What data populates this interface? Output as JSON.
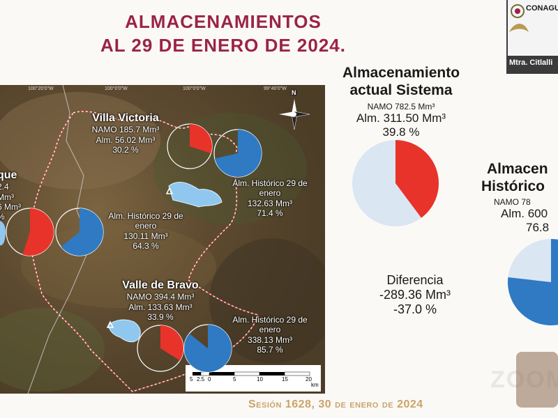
{
  "title_line1": "ALMACENAMIENTOS",
  "title_line2": "AL  29  DE ENERO DE 2024.",
  "map": {
    "coords": [
      "100°20'0\"W",
      "100°0'0\"W",
      "99°40'0\"W"
    ],
    "north": "N",
    "villa_victoria": {
      "name": "Villa Victoria",
      "namo": "NAMO 185.7 Mm³",
      "alm": "Alm. 56.02 Mm³",
      "pct": "30.2 %",
      "pct_value": 30.2,
      "hist_line1": "Alm. Histórico 29 de",
      "hist_line2": "enero",
      "hist_value": "132.63 Mm³",
      "hist_pct": "71.4 %",
      "hist_pct_value": 71.4
    },
    "el_bosque": {
      "name": "que",
      "namo": "2.4 Mm³",
      "alm": "6 Mm³",
      "pct": "%",
      "hist_line1": "Alm. Histórico 29 de",
      "hist_line2": "enero",
      "hist_value": "130.11 Mm³",
      "hist_pct": "64.3 %",
      "hist_pct_value": 64.3,
      "current_pct_value": 55
    },
    "valle_de_bravo": {
      "name": "Valle de Bravo",
      "namo": "NAMO 394.4 Mm³",
      "alm": "Alm. 133.63 Mm³",
      "pct": "33.9 %",
      "pct_value": 33.9,
      "hist_line1": "Alm. Histórico 29 de",
      "hist_line2": "enero",
      "hist_value": "338.13 Mm³",
      "hist_pct": "85.7 %",
      "hist_pct_value": 85.7
    },
    "scale_labels": [
      "5",
      "2.5",
      "0",
      "5",
      "10",
      "15",
      "20"
    ],
    "scale_unit": "km"
  },
  "sistema": {
    "title_line1": "Almacenamiento",
    "title_line2": "actual Sistema",
    "namo": "NAMO 782.5 Mm³",
    "alm": "Alm. 311.50 Mm³",
    "pct": "39.8 %",
    "pct_value": 39.8
  },
  "historico": {
    "title_line1": "Almacen",
    "title_line2": "Histórico",
    "namo": "NAMO 78",
    "alm": "Alm. 600",
    "pct": "76.8",
    "pct_value": 76.8
  },
  "diferencia": {
    "label": "Diferencia",
    "value": "-289.36 Mm³",
    "pct": "-37.0 %"
  },
  "footer": "Sesión 1628, 30 de enero de 2024",
  "video": {
    "org": "CONAGUA",
    "participant": "Mtra. Citlalli"
  },
  "watermark": "ZOOM",
  "colors": {
    "title": "#9b2347",
    "current": "#e8332a",
    "historic": "#2f7ac3",
    "pale": "#dbe6f3",
    "footer": "#c9a46a"
  }
}
